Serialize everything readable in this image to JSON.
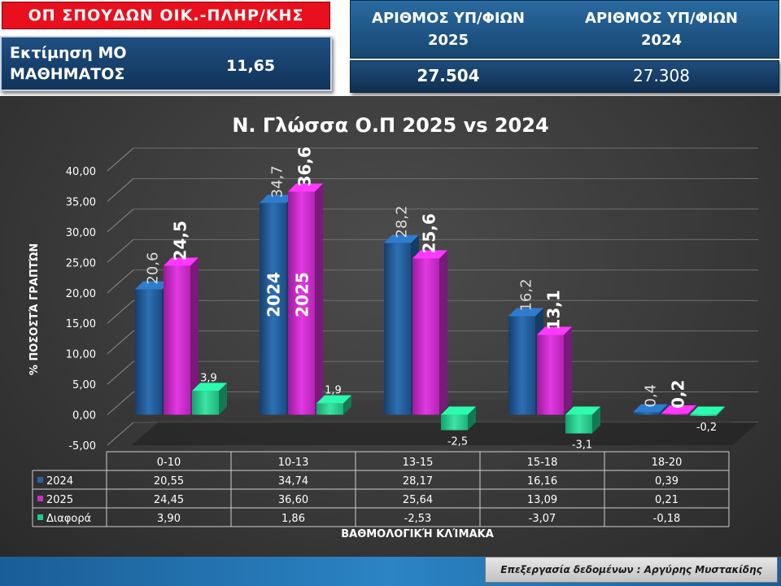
{
  "header": {
    "program_badge": "ΟΠ ΣΠΟΥΔΩΝ ΟΙΚ.-ΠΛΗΡ/ΚΗΣ",
    "estimate_label": "Εκτίμηση ΜΟ ΜΑΘΗΜΑΤΟΣ",
    "estimate_value": "11,65",
    "count_2025_label": "ΑΡΙΘΜΟΣ ΥΠ/ΦΙΩΝ 2025",
    "count_2024_label": "ΑΡΙΘΜΟΣ ΥΠ/ΦΙΩΝ 2024",
    "count_2025_value": "27.504",
    "count_2024_value": "27.308"
  },
  "footer": {
    "credit": "Επεξεργασία δεδομένων : Αργύρης Μυστακίδης"
  },
  "colors": {
    "s2024": "#2563a6",
    "s2025": "#cc2ccc",
    "diff": "#22c98a",
    "badge": "#e8101e"
  },
  "chart_data": {
    "type": "bar",
    "title": "Ν. Γλώσσα Ο.Π 2025 vs 2024",
    "xlabel": "ΒΑΘΜΟΛΟΓΙΚΉ ΚΛΊΜΑΚΑ",
    "ylabel": "% ΠΟΣΟΣΤΆ ΓΡΑΠΤΏΝ",
    "ylim": [
      -5,
      40
    ],
    "yticks": [
      "40,00",
      "35,00",
      "30,00",
      "25,00",
      "20,00",
      "15,00",
      "10,00",
      "5,00",
      "0,00",
      "-5,00"
    ],
    "categories": [
      "0-10",
      "10-13",
      "13-15",
      "15-18",
      "18-20"
    ],
    "series": [
      {
        "name": "2024",
        "values": [
          20.55,
          34.74,
          28.17,
          16.16,
          0.39
        ],
        "labels": [
          "20,6",
          "34,7",
          "28,2",
          "16,2",
          "0,4"
        ],
        "table": [
          "20,55",
          "34,74",
          "28,17",
          "16,16",
          "0,39"
        ]
      },
      {
        "name": "2025",
        "values": [
          24.45,
          36.6,
          25.64,
          13.09,
          0.21
        ],
        "labels": [
          "24,5",
          "36,6",
          "25,6",
          "13,1",
          "0,2"
        ],
        "table": [
          "24,45",
          "36,60",
          "25,64",
          "13,09",
          "0,21"
        ]
      },
      {
        "name": "Διαφορά",
        "values": [
          3.9,
          1.86,
          -2.53,
          -3.07,
          -0.18
        ],
        "labels": [
          "3,9",
          "1,9",
          "-2,5",
          "-3,1",
          "-0,2"
        ],
        "table": [
          "3,90",
          "1,86",
          "-2,53",
          "-3,07",
          "-0,18"
        ]
      }
    ],
    "in_bar_labels": [
      "2024",
      "2025"
    ],
    "grid": true,
    "legend": "data-table"
  }
}
